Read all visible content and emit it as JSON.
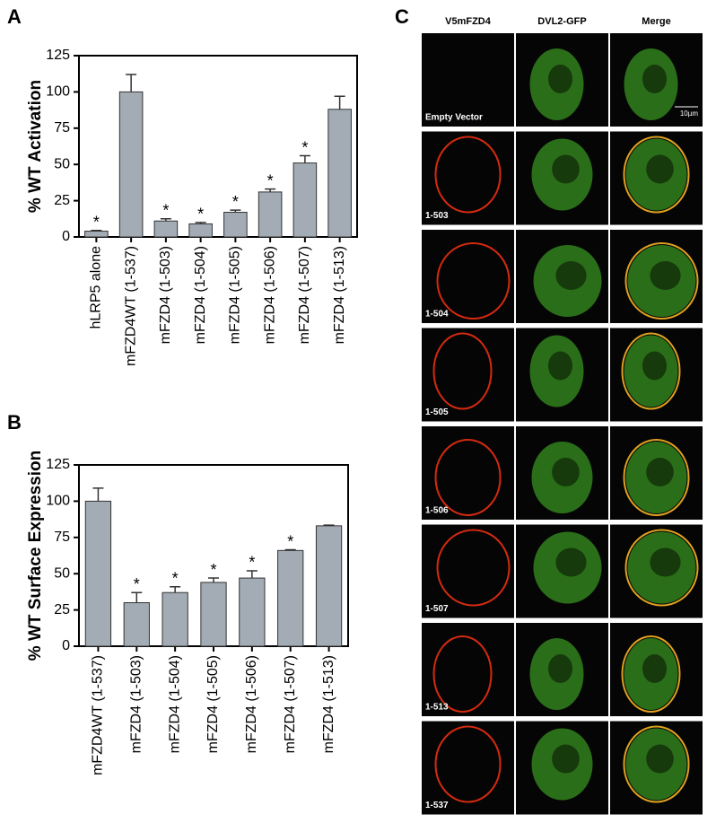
{
  "chart_data": [
    {
      "type": "bar",
      "panel_label": "A",
      "y_label": "% WT Activation",
      "categories": [
        "hLRP5 alone",
        "mFZD4WT (1-537)",
        "mFZD4 (1-503)",
        "mFZD4 (1-504)",
        "mFZD4 (1-505)",
        "mFZD4 (1-506)",
        "mFZD4 (1-507)",
        "mFZD4 (1-513)"
      ],
      "values": [
        4,
        100,
        11,
        9,
        17,
        31,
        51,
        88
      ],
      "errors": [
        0.5,
        12,
        1.5,
        1,
        1.5,
        2,
        5,
        9
      ],
      "significance": [
        "*",
        null,
        "*",
        "*",
        "*",
        "*",
        "*",
        null
      ],
      "color": "#a3acb4",
      "ylim": [
        0,
        125
      ],
      "yticks": [
        0,
        25,
        50,
        75,
        100,
        125
      ]
    },
    {
      "type": "bar",
      "panel_label": "B",
      "y_label": "% WT Surface Expression",
      "categories": [
        "mFZD4WT (1-537)",
        "mFZD4 (1-503)",
        "mFZD4 (1-504)",
        "mFZD4 (1-505)",
        "mFZD4 (1-506)",
        "mFZD4 (1-507)",
        "mFZD4 (1-513)"
      ],
      "values": [
        100,
        30,
        37,
        44,
        47,
        66,
        83
      ],
      "errors": [
        9,
        7,
        4,
        3,
        5,
        0.5,
        0.5
      ],
      "significance": [
        null,
        "*",
        "*",
        "*",
        "*",
        "*",
        null
      ],
      "color": "#a3acb4",
      "ylim": [
        0,
        125
      ],
      "yticks": [
        0,
        25,
        50,
        75,
        100,
        125
      ]
    }
  ],
  "microscopy": {
    "panel_label": "C",
    "columns": [
      "V5mFZD4",
      "DVL2-GFP",
      "Merge"
    ],
    "rows": [
      "Empty Vector",
      "1-503",
      "1-504",
      "1-505",
      "1-506",
      "1-507",
      "1-513",
      "1-537"
    ],
    "scale_bar": "10µm"
  }
}
